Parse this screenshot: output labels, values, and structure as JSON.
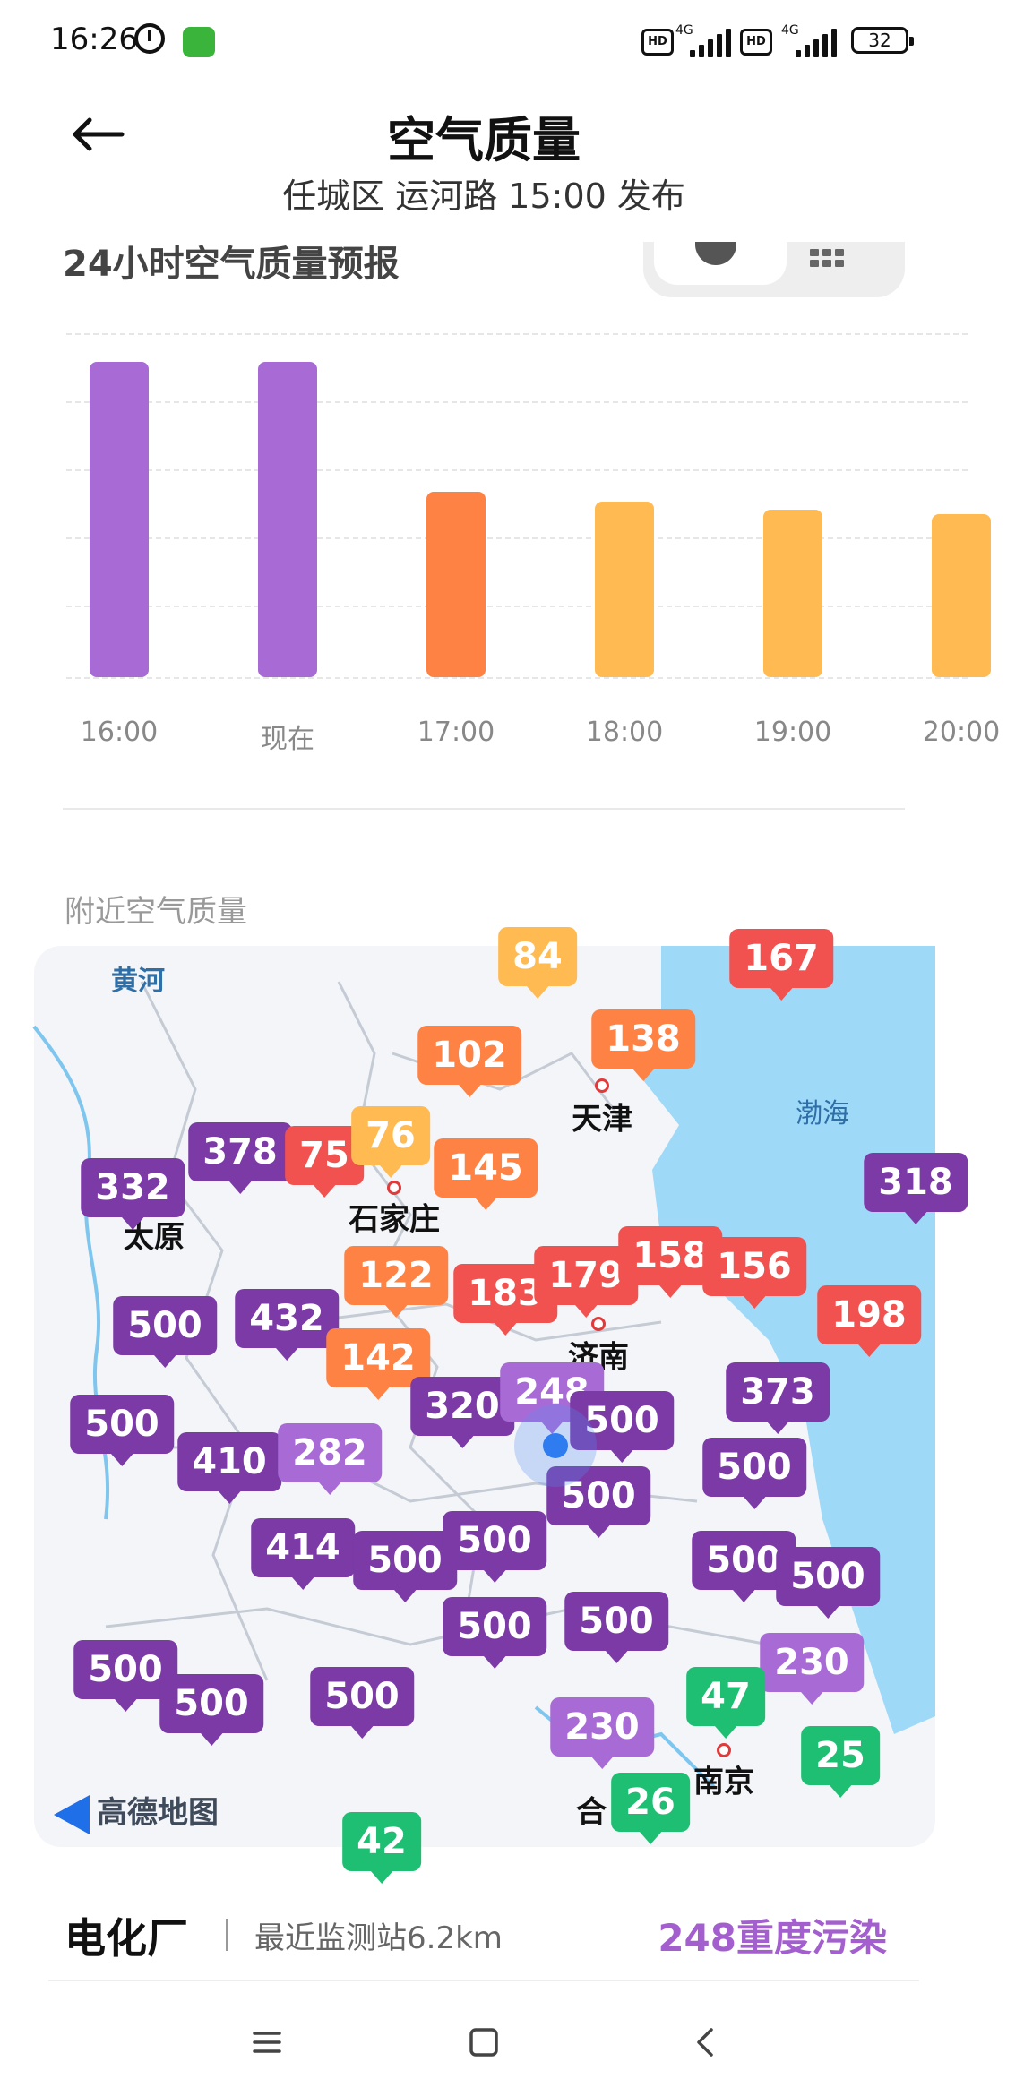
{
  "status_bar": {
    "time": "16:26",
    "signal1_label": "HD",
    "signal1_net": "4G",
    "signal2_label": "HD",
    "signal2_net": "4G",
    "battery": "32"
  },
  "header": {
    "title": "空气质量",
    "subtitle": "任城区 运河路 15:00 发布"
  },
  "forecast": {
    "title": "24小时空气质量预报",
    "toggle_icons": [
      "clock-icon",
      "grid-icon"
    ],
    "chart_data": {
      "type": "bar",
      "categories": [
        "16:00",
        "现在",
        "17:00",
        "18:00",
        "19:00",
        "20:00"
      ],
      "values": [
        248,
        248,
        146,
        138,
        132,
        128
      ],
      "colors": [
        "#a86bd6",
        "#a86bd6",
        "#ff8245",
        "#ffbb52",
        "#ffbb52",
        "#ffbb52"
      ],
      "ylim": [
        0,
        300
      ],
      "grid": true
    }
  },
  "nearby": {
    "section_title": "附近空气质量",
    "map": {
      "logo": "高德地图",
      "river_label": "黄河",
      "sea_label": "渤海",
      "cities": [
        "太原",
        "石家庄",
        "天津",
        "济南",
        "南京",
        "合"
      ],
      "pins": [
        {
          "v": "84",
          "c": "#ffbb52"
        },
        {
          "v": "167",
          "c": "#f2524f"
        },
        {
          "v": "102",
          "c": "#ff8245"
        },
        {
          "v": "138",
          "c": "#ff8245"
        },
        {
          "v": "378",
          "c": "#7b3aa6"
        },
        {
          "v": "75",
          "c": "#f2524f"
        },
        {
          "v": "76",
          "c": "#ffbb52"
        },
        {
          "v": "145",
          "c": "#ff8245"
        },
        {
          "v": "332",
          "c": "#7b3aa6"
        },
        {
          "v": "318",
          "c": "#7b3aa6"
        },
        {
          "v": "122",
          "c": "#ff8245"
        },
        {
          "v": "183",
          "c": "#f2524f"
        },
        {
          "v": "179",
          "c": "#f2524f"
        },
        {
          "v": "158",
          "c": "#f2524f"
        },
        {
          "v": "156",
          "c": "#f2524f"
        },
        {
          "v": "198",
          "c": "#f2524f"
        },
        {
          "v": "500",
          "c": "#7b3aa6"
        },
        {
          "v": "432",
          "c": "#7b3aa6"
        },
        {
          "v": "142",
          "c": "#ff8245"
        },
        {
          "v": "320",
          "c": "#7b3aa6"
        },
        {
          "v": "248",
          "c": "#a86bd6"
        },
        {
          "v": "500",
          "c": "#7b3aa6"
        },
        {
          "v": "373",
          "c": "#7b3aa6"
        },
        {
          "v": "500",
          "c": "#7b3aa6"
        },
        {
          "v": "410",
          "c": "#7b3aa6"
        },
        {
          "v": "282",
          "c": "#a86bd6"
        },
        {
          "v": "500",
          "c": "#7b3aa6"
        },
        {
          "v": "500",
          "c": "#7b3aa6"
        },
        {
          "v": "414",
          "c": "#7b3aa6"
        },
        {
          "v": "500",
          "c": "#7b3aa6"
        },
        {
          "v": "500",
          "c": "#7b3aa6"
        },
        {
          "v": "500",
          "c": "#7b3aa6"
        },
        {
          "v": "500",
          "c": "#7b3aa6"
        },
        {
          "v": "500",
          "c": "#7b3aa6"
        },
        {
          "v": "500",
          "c": "#7b3aa6"
        },
        {
          "v": "500",
          "c": "#7b3aa6"
        },
        {
          "v": "500",
          "c": "#7b3aa6"
        },
        {
          "v": "500",
          "c": "#7b3aa6"
        },
        {
          "v": "230",
          "c": "#a86bd6"
        },
        {
          "v": "47",
          "c": "#1fbf73"
        },
        {
          "v": "230",
          "c": "#a86bd6"
        },
        {
          "v": "25",
          "c": "#1fbf73"
        },
        {
          "v": "26",
          "c": "#1fbf73"
        },
        {
          "v": "42",
          "c": "#1fbf73"
        }
      ]
    }
  },
  "station": {
    "name": "电化厂",
    "distance": "最近监测站6.2km",
    "aqi_text": "248重度污染",
    "aqi_color": "#a45fcf"
  },
  "navbar": {
    "icons": [
      "menu-icon",
      "home-icon",
      "back-icon"
    ]
  }
}
